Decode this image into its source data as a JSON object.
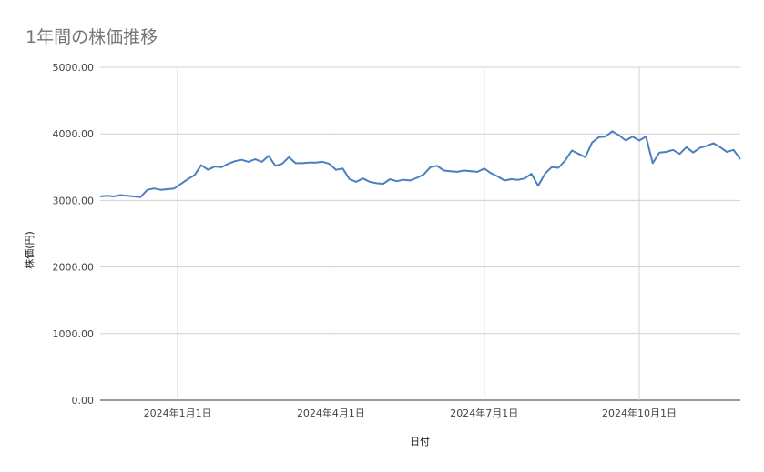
{
  "chart_data": {
    "type": "line",
    "title": "1年間の株価推移",
    "xlabel": "日付",
    "ylabel": "株価(円)",
    "ylim": [
      0,
      5000
    ],
    "yticks": [
      "0.00",
      "1000.00",
      "2000.00",
      "3000.00",
      "4000.00",
      "5000.00"
    ],
    "xticks": [
      "2024年1月1日",
      "2024年4月1日",
      "2024年7月1日",
      "2024年10月1日"
    ],
    "xtick_dates": [
      "2024-01-01",
      "2024-04-01",
      "2024-07-01",
      "2024-10-01"
    ],
    "xlim": [
      "2023-11-16",
      "2024-11-30"
    ],
    "grid": true,
    "line_color": "#4a7fc1",
    "series": [
      {
        "x": [
          "2023-11-16",
          "2023-11-20",
          "2023-11-24",
          "2023-11-28",
          "2023-12-02",
          "2023-12-06",
          "2023-12-10",
          "2023-12-14",
          "2023-12-18",
          "2023-12-22",
          "2023-12-26",
          "2023-12-30",
          "2024-01-03",
          "2024-01-07",
          "2024-01-11",
          "2024-01-15",
          "2024-01-19",
          "2024-01-23",
          "2024-01-27",
          "2024-01-31",
          "2024-02-04",
          "2024-02-08",
          "2024-02-12",
          "2024-02-16",
          "2024-02-20",
          "2024-02-24",
          "2024-02-28",
          "2024-03-03",
          "2024-03-07",
          "2024-03-11",
          "2024-03-15",
          "2024-03-19",
          "2024-03-23",
          "2024-03-27",
          "2024-03-31",
          "2024-04-04",
          "2024-04-08",
          "2024-04-12",
          "2024-04-16",
          "2024-04-20",
          "2024-04-24",
          "2024-04-28",
          "2024-05-02",
          "2024-05-06",
          "2024-05-10",
          "2024-05-14",
          "2024-05-18",
          "2024-05-22",
          "2024-05-26",
          "2024-05-30",
          "2024-06-03",
          "2024-06-07",
          "2024-06-11",
          "2024-06-15",
          "2024-06-19",
          "2024-06-23",
          "2024-06-27",
          "2024-07-01",
          "2024-07-05",
          "2024-07-09",
          "2024-07-13",
          "2024-07-17",
          "2024-07-21",
          "2024-07-25",
          "2024-07-29",
          "2024-08-02",
          "2024-08-06",
          "2024-08-10",
          "2024-08-14",
          "2024-08-18",
          "2024-08-22",
          "2024-08-26",
          "2024-08-30",
          "2024-09-03",
          "2024-09-07",
          "2024-09-11",
          "2024-09-15",
          "2024-09-19",
          "2024-09-23",
          "2024-09-27",
          "2024-10-01",
          "2024-10-05",
          "2024-10-09",
          "2024-10-13",
          "2024-10-17",
          "2024-10-21",
          "2024-10-25",
          "2024-10-29",
          "2024-11-02",
          "2024-11-06",
          "2024-11-10",
          "2024-11-14",
          "2024-11-18",
          "2024-11-22",
          "2024-11-26",
          "2024-11-30"
        ],
        "values": [
          3060,
          3070,
          3060,
          3080,
          3070,
          3060,
          3050,
          3160,
          3180,
          3160,
          3170,
          3180,
          3250,
          3320,
          3380,
          3530,
          3460,
          3510,
          3500,
          3550,
          3590,
          3610,
          3580,
          3620,
          3580,
          3670,
          3520,
          3550,
          3650,
          3560,
          3560,
          3570,
          3570,
          3580,
          3550,
          3460,
          3480,
          3320,
          3280,
          3330,
          3280,
          3260,
          3250,
          3320,
          3290,
          3310,
          3300,
          3340,
          3390,
          3500,
          3520,
          3450,
          3440,
          3430,
          3450,
          3440,
          3430,
          3480,
          3410,
          3360,
          3300,
          3320,
          3310,
          3330,
          3400,
          3220,
          3400,
          3500,
          3490,
          3600,
          3750,
          3700,
          3650,
          3870,
          3950,
          3960,
          4040,
          3980,
          3900,
          3960,
          3900,
          3960,
          3560,
          3720,
          3730,
          3760,
          3700,
          3800,
          3720,
          3790,
          3820,
          3860,
          3800,
          3730,
          3760,
          3620
        ]
      }
    ]
  }
}
